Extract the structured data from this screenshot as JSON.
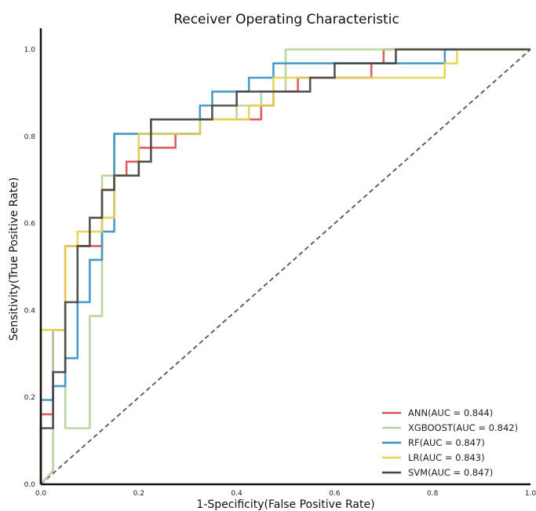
{
  "chart_data": {
    "type": "line",
    "title": "Receiver Operating Characteristic",
    "xlabel": "1-Specificity(False Positive Rate)",
    "ylabel": "Sensitivity(True Positive Rate)",
    "xlim": [
      0,
      1
    ],
    "ylim": [
      0,
      1
    ],
    "xticks": [
      "0.0",
      "0.2",
      "0.4",
      "0.6",
      "0.8",
      "1.0"
    ],
    "yticks": [
      "0.0",
      "0.2",
      "0.4",
      "0.6",
      "0.8",
      "1.0"
    ],
    "grid": false,
    "legend_position": "bottom-right",
    "diagonal": {
      "x": [
        0,
        1
      ],
      "y": [
        0,
        1
      ],
      "color": "#555555",
      "style": "dashed"
    },
    "series": [
      {
        "name": "ANN(AUC = 0.844)",
        "color": "#d9534f",
        "x": [
          0,
          0,
          0.025,
          0.025,
          0.05,
          0.05,
          0.075,
          0.075,
          0.1,
          0.1,
          0.125,
          0.125,
          0.15,
          0.15,
          0.175,
          0.175,
          0.2,
          0.2,
          0.225,
          0.225,
          0.275,
          0.275,
          0.325,
          0.325,
          0.35,
          0.35,
          0.45,
          0.45,
          0.475,
          0.475,
          0.525,
          0.525,
          0.55,
          0.55,
          0.6,
          0.6,
          0.675,
          0.675,
          0.7,
          0.7,
          1.0
        ],
        "y": [
          0,
          0.161,
          0.161,
          0.355,
          0.355,
          0.548,
          0.548,
          0.548,
          0.548,
          0.548,
          0.548,
          0.677,
          0.677,
          0.71,
          0.71,
          0.742,
          0.742,
          0.774,
          0.774,
          0.774,
          0.774,
          0.806,
          0.806,
          0.839,
          0.839,
          0.839,
          0.839,
          0.871,
          0.871,
          0.903,
          0.903,
          0.935,
          0.935,
          0.935,
          0.935,
          0.935,
          0.935,
          0.968,
          0.968,
          1.0,
          1.0
        ]
      },
      {
        "name": "XGBOOST(AUC = 0.842)",
        "color": "#b5d39a",
        "x": [
          0,
          0.025,
          0.025,
          0.05,
          0.05,
          0.1,
          0.1,
          0.125,
          0.125,
          0.15,
          0.15,
          0.225,
          0.225,
          0.375,
          0.375,
          0.4,
          0.4,
          0.45,
          0.45,
          0.5,
          0.5,
          1.0
        ],
        "y": [
          0,
          0.032,
          0.355,
          0.355,
          0.129,
          0.129,
          0.387,
          0.387,
          0.71,
          0.71,
          0.806,
          0.806,
          0.839,
          0.839,
          0.839,
          0.839,
          0.871,
          0.871,
          0.903,
          0.903,
          1.0,
          1.0
        ]
      },
      {
        "name": "RF(AUC = 0.847)",
        "color": "#3a93c3",
        "x": [
          0,
          0,
          0.025,
          0.025,
          0.05,
          0.05,
          0.075,
          0.075,
          0.1,
          0.1,
          0.125,
          0.125,
          0.15,
          0.15,
          0.2,
          0.2,
          0.325,
          0.325,
          0.35,
          0.35,
          0.425,
          0.425,
          0.475,
          0.475,
          0.825,
          0.825,
          1.0
        ],
        "y": [
          0,
          0.194,
          0.194,
          0.226,
          0.226,
          0.29,
          0.29,
          0.419,
          0.419,
          0.516,
          0.516,
          0.581,
          0.581,
          0.806,
          0.806,
          0.806,
          0.806,
          0.871,
          0.871,
          0.903,
          0.903,
          0.935,
          0.935,
          0.968,
          0.968,
          1.0,
          1.0
        ]
      },
      {
        "name": "LR(AUC = 0.843)",
        "color": "#e6d34f",
        "x": [
          0,
          0,
          0.05,
          0.05,
          0.075,
          0.075,
          0.125,
          0.125,
          0.15,
          0.15,
          0.2,
          0.2,
          0.325,
          0.325,
          0.425,
          0.425,
          0.475,
          0.475,
          0.825,
          0.825,
          0.85,
          0.85,
          1.0
        ],
        "y": [
          0,
          0.355,
          0.355,
          0.548,
          0.548,
          0.581,
          0.581,
          0.613,
          0.613,
          0.71,
          0.71,
          0.806,
          0.806,
          0.839,
          0.839,
          0.871,
          0.871,
          0.935,
          0.935,
          0.968,
          0.968,
          1.0,
          1.0
        ]
      },
      {
        "name": "SVM(AUC = 0.847)",
        "color": "#444444",
        "x": [
          0,
          0,
          0.025,
          0.025,
          0.05,
          0.05,
          0.075,
          0.075,
          0.1,
          0.1,
          0.125,
          0.125,
          0.15,
          0.15,
          0.2,
          0.2,
          0.225,
          0.225,
          0.35,
          0.35,
          0.4,
          0.4,
          0.5,
          0.5,
          0.55,
          0.55,
          0.6,
          0.6,
          0.725,
          0.725,
          1.0
        ],
        "y": [
          0,
          0.129,
          0.129,
          0.258,
          0.258,
          0.419,
          0.419,
          0.548,
          0.548,
          0.613,
          0.613,
          0.677,
          0.677,
          0.71,
          0.71,
          0.742,
          0.742,
          0.839,
          0.839,
          0.871,
          0.871,
          0.903,
          0.903,
          0.903,
          0.903,
          0.935,
          0.935,
          0.968,
          0.968,
          1.0,
          1.0
        ]
      }
    ]
  }
}
